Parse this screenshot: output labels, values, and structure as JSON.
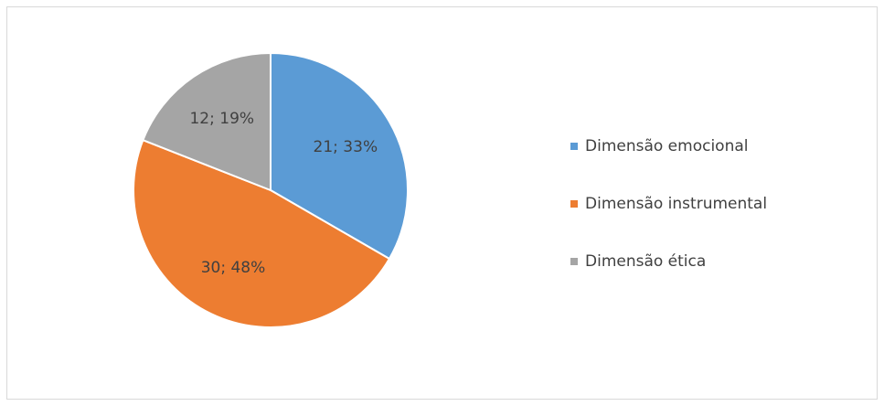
{
  "chart_data": {
    "type": "pie",
    "categories": [
      "Dimensão emocional",
      "Dimensão instrumental",
      "Dimensão ética"
    ],
    "values": [
      21,
      30,
      12
    ],
    "value_labels": [
      "21; 33%",
      "30; 48%",
      "12; 19%"
    ],
    "colors": [
      "#5b9bd5",
      "#ed7d31",
      "#a5a5a5"
    ],
    "legend": "right"
  }
}
